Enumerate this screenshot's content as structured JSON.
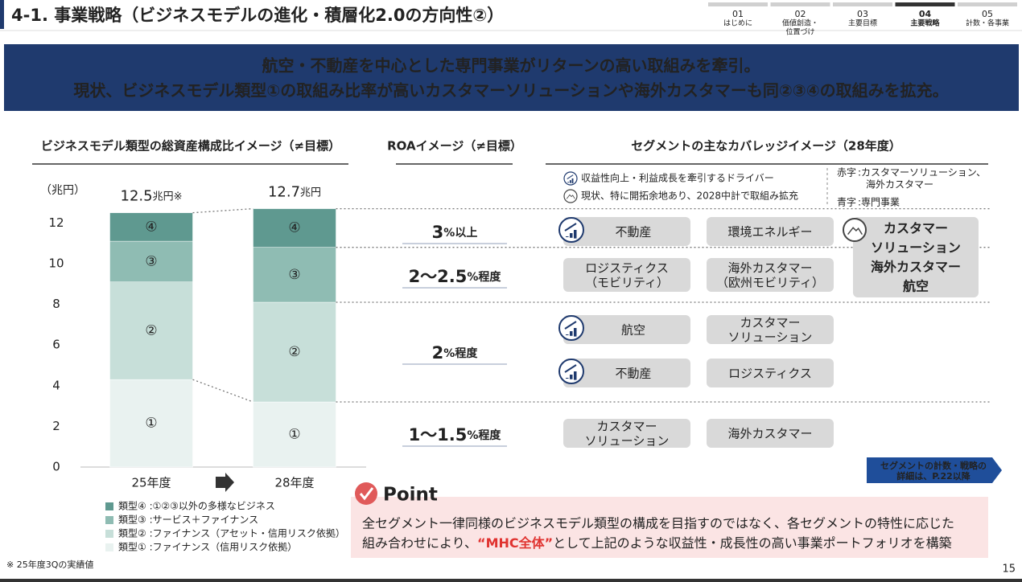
{
  "header": {
    "title": "4-1. 事業戦略（ビジネスモデルの進化・積層化2.0の方向性②）",
    "nav": [
      {
        "num": "01",
        "label": [
          "はじめに"
        ]
      },
      {
        "num": "02",
        "label": [
          "価値創造・",
          "位置づけ"
        ]
      },
      {
        "num": "03",
        "label": [
          "主要目標"
        ]
      },
      {
        "num": "04",
        "label": [
          "主要戦略"
        ],
        "active": true
      },
      {
        "num": "05",
        "label": [
          "計数・各事業"
        ]
      }
    ]
  },
  "banner": [
    "航空・不動産を中心とした専門事業がリターンの高い取組みを牽引。",
    "現状、ビジネスモデル類型①の取組み比率が高いカスタマーソリューションや海外カスタマーも同②③④の取組みを拡充。"
  ],
  "chart_data": {
    "type": "stacked_bar",
    "title": "ビジネスモデル類型の総資産構成比イメージ（≠目標）",
    "ylabel": "（兆円）",
    "categories": [
      "25年度",
      "28年度"
    ],
    "series": [
      {
        "name": "類型① :ファイナンス（信用リスク依拠）",
        "label": "①",
        "color": "#e9f2f0",
        "values": [
          4.3,
          3.2
        ]
      },
      {
        "name": "類型② :ファイナンス（アセット・信用リスク依拠）",
        "label": "②",
        "color": "#c7dfd9",
        "values": [
          4.8,
          4.9
        ]
      },
      {
        "name": "類型③ :サービス＋ファイナンス",
        "label": "③",
        "color": "#8fbcb3",
        "values": [
          2.0,
          2.7
        ]
      },
      {
        "name": "類型④ :①②③以外の多様なビジネス",
        "label": "④",
        "color": "#5f9990",
        "values": [
          1.4,
          1.9
        ]
      }
    ],
    "totals": [
      12.5,
      12.7
    ],
    "total_units": [
      "兆円※",
      "兆円"
    ],
    "ylim": [
      0,
      13
    ],
    "yticks": [
      0,
      2,
      4,
      6,
      8,
      10,
      12
    ],
    "grid": false
  },
  "roa": {
    "title": "ROAイメージ（≠目標）",
    "levels": [
      {
        "value": "3",
        "suffix": "%以上"
      },
      {
        "value": "2～2.5",
        "suffix": "%程度"
      },
      {
        "value": "2",
        "suffix": "%程度"
      },
      {
        "value": "1～1.5",
        "suffix": "%程度"
      }
    ]
  },
  "coverage": {
    "title": "セグメントの主なカバレッジイメージ（28年度）",
    "icon_legend": [
      {
        "icon": "driver",
        "text": "収益性向上・利益成長を牽引するドライバー"
      },
      {
        "icon": "explore",
        "text": "現状、特に開拓余地あり、2028中計で取組み拡充"
      }
    ],
    "color_key": [
      {
        "key": "赤字",
        "color": "#e0322f",
        "text": [
          ":カスタマーソリューション、",
          "海外カスタマー"
        ]
      },
      {
        "key": "青字",
        "color": "#1f3a6e",
        "text": [
          ":専門事業"
        ]
      }
    ],
    "boxes": [
      {
        "icon": "driver",
        "lines": [
          {
            "text": "不動産",
            "color": "#1f3a6e"
          }
        ]
      },
      {
        "lines": [
          {
            "text": "環境エネルギー",
            "color": "#1f3a6e"
          }
        ]
      },
      {
        "icon": "explore",
        "lines": [
          {
            "text": "カスタマー",
            "color": "#e0322f"
          },
          {
            "text": "ソリューション",
            "color": "#e0322f"
          },
          {
            "text": "海外カスタマー",
            "color": "#e0322f"
          },
          {
            "text": "航空",
            "color": "#1f3a6e"
          }
        ]
      },
      {
        "lines": [
          {
            "text": "ロジスティクス",
            "color": "#1f3a6e"
          },
          {
            "text": "（モビリティ）",
            "color": "#1f3a6e"
          }
        ]
      },
      {
        "lines": [
          {
            "text": "海外カスタマー",
            "color": "#e0322f"
          },
          {
            "text": "（欧州モビリティ）",
            "color": "#e0322f"
          }
        ]
      },
      {
        "icon": "driver",
        "lines": [
          {
            "text": "航空",
            "color": "#1f3a6e"
          }
        ]
      },
      {
        "lines": [
          {
            "text": "カスタマー",
            "color": "#e0322f"
          },
          {
            "text": "ソリューション",
            "color": "#e0322f"
          }
        ]
      },
      {
        "icon": "driver",
        "lines": [
          {
            "text": "不動産",
            "color": "#1f3a6e"
          }
        ]
      },
      {
        "lines": [
          {
            "text": "ロジスティクス",
            "color": "#1f3a6e"
          }
        ]
      },
      {
        "lines": [
          {
            "text": "カスタマー",
            "color": "#e0322f"
          },
          {
            "text": "ソリューション",
            "color": "#e0322f"
          }
        ]
      },
      {
        "lines": [
          {
            "text": "海外カスタマー",
            "color": "#e0322f"
          }
        ]
      }
    ]
  },
  "link": [
    "セグメントの計数・戦略の",
    "詳細は、P.22以降"
  ],
  "point": {
    "label": "Point",
    "line1": "全セグメント一律同様のビジネスモデル類型の構成を目指すのではなく、各セグメントの特性に応じた",
    "line2": {
      "before": "組み合わせにより、",
      "highlight": "“MHC全体”",
      "after": "として上記のような収益性・成長性の高い事業ポートフォリオを構築"
    },
    "highlight_color": "#e0322f"
  },
  "footnote": "※ 25年度3Qの実績値",
  "page": "15"
}
